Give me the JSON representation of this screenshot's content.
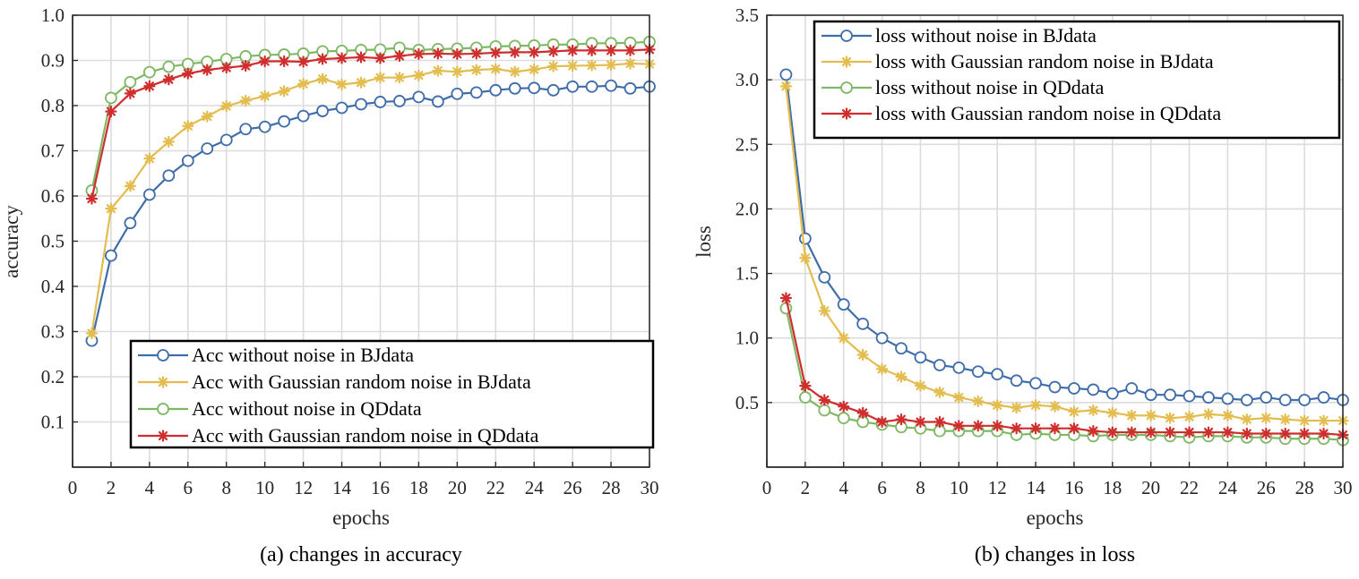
{
  "chart_data": [
    {
      "type": "line",
      "caption": "(a) changes in accuracy",
      "xlabel": "epochs",
      "ylabel": "accuracy",
      "xlim": [
        0,
        30
      ],
      "ylim": [
        0,
        1.0
      ],
      "xticks": [
        0,
        2,
        4,
        6,
        8,
        10,
        12,
        14,
        16,
        18,
        20,
        22,
        24,
        26,
        28,
        30
      ],
      "yticks": [
        "0.1",
        "0.2",
        "0.3",
        "0.4",
        "0.5",
        "0.6",
        "0.7",
        "0.8",
        "0.9",
        "1.0"
      ],
      "grid": true,
      "legend_position": "bottom-right",
      "x": [
        1,
        2,
        3,
        4,
        5,
        6,
        7,
        8,
        9,
        10,
        11,
        12,
        13,
        14,
        15,
        16,
        17,
        18,
        19,
        20,
        21,
        22,
        23,
        24,
        25,
        26,
        27,
        28,
        29,
        30
      ],
      "series": [
        {
          "name": "Acc without noise in BJdata",
          "color": "#3F6DAA",
          "marker": "circle",
          "values": [
            0.28,
            0.468,
            0.54,
            0.603,
            0.645,
            0.678,
            0.705,
            0.724,
            0.748,
            0.753,
            0.765,
            0.777,
            0.788,
            0.795,
            0.803,
            0.808,
            0.81,
            0.819,
            0.809,
            0.826,
            0.829,
            0.834,
            0.838,
            0.839,
            0.834,
            0.842,
            0.842,
            0.844,
            0.838,
            0.842
          ]
        },
        {
          "name": "Acc with Gaussian random noise in BJdata",
          "color": "#E3BD4F",
          "marker": "asterisk",
          "values": [
            0.296,
            0.572,
            0.622,
            0.683,
            0.72,
            0.755,
            0.776,
            0.799,
            0.811,
            0.821,
            0.832,
            0.848,
            0.859,
            0.847,
            0.851,
            0.862,
            0.862,
            0.867,
            0.877,
            0.875,
            0.879,
            0.881,
            0.875,
            0.88,
            0.887,
            0.888,
            0.889,
            0.89,
            0.893,
            0.892
          ]
        },
        {
          "name": "Acc without noise in QDdata",
          "color": "#7FB865",
          "marker": "circle",
          "values": [
            0.612,
            0.817,
            0.852,
            0.874,
            0.886,
            0.892,
            0.897,
            0.903,
            0.909,
            0.912,
            0.913,
            0.915,
            0.92,
            0.921,
            0.923,
            0.924,
            0.928,
            0.923,
            0.925,
            0.926,
            0.928,
            0.931,
            0.932,
            0.933,
            0.935,
            0.935,
            0.938,
            0.938,
            0.939,
            0.941
          ]
        },
        {
          "name": "Acc with Gaussian random noise in QDdata",
          "color": "#D02E2E",
          "marker": "asterisk",
          "values": [
            0.594,
            0.787,
            0.827,
            0.843,
            0.858,
            0.871,
            0.879,
            0.884,
            0.888,
            0.898,
            0.898,
            0.897,
            0.903,
            0.905,
            0.907,
            0.905,
            0.91,
            0.914,
            0.915,
            0.914,
            0.915,
            0.917,
            0.918,
            0.918,
            0.92,
            0.922,
            0.922,
            0.922,
            0.922,
            0.924
          ]
        }
      ]
    },
    {
      "type": "line",
      "caption": "(b) changes in loss",
      "xlabel": "epochs",
      "ylabel": "loss",
      "xlim": [
        0,
        30
      ],
      "ylim": [
        0,
        3.5
      ],
      "xticks": [
        0,
        2,
        4,
        6,
        8,
        10,
        12,
        14,
        16,
        18,
        20,
        22,
        24,
        26,
        28,
        30
      ],
      "yticks": [
        "0.5",
        "1.0",
        "1.5",
        "2.0",
        "2.5",
        "3.0",
        "3.5"
      ],
      "grid": true,
      "legend_position": "top-right",
      "x": [
        1,
        2,
        3,
        4,
        5,
        6,
        7,
        8,
        9,
        10,
        11,
        12,
        13,
        14,
        15,
        16,
        17,
        18,
        19,
        20,
        21,
        22,
        23,
        24,
        25,
        26,
        27,
        28,
        29,
        30
      ],
      "series": [
        {
          "name": "loss without noise in BJdata",
          "color": "#3F6DAA",
          "marker": "circle",
          "values": [
            3.04,
            1.77,
            1.47,
            1.26,
            1.11,
            1.0,
            0.92,
            0.85,
            0.79,
            0.77,
            0.74,
            0.72,
            0.67,
            0.65,
            0.62,
            0.61,
            0.6,
            0.57,
            0.61,
            0.56,
            0.56,
            0.55,
            0.54,
            0.53,
            0.52,
            0.54,
            0.52,
            0.52,
            0.54,
            0.52
          ]
        },
        {
          "name": "loss with Gaussian random noise in BJdata",
          "color": "#E3BD4F",
          "marker": "asterisk",
          "values": [
            2.95,
            1.62,
            1.21,
            1.0,
            0.87,
            0.76,
            0.7,
            0.63,
            0.58,
            0.54,
            0.51,
            0.48,
            0.46,
            0.48,
            0.47,
            0.43,
            0.44,
            0.42,
            0.4,
            0.4,
            0.38,
            0.39,
            0.41,
            0.4,
            0.37,
            0.38,
            0.37,
            0.36,
            0.36,
            0.36
          ]
        },
        {
          "name": "loss without noise in QDdata",
          "color": "#7FB865",
          "marker": "circle",
          "values": [
            1.23,
            0.54,
            0.44,
            0.38,
            0.35,
            0.33,
            0.31,
            0.3,
            0.28,
            0.28,
            0.28,
            0.28,
            0.25,
            0.26,
            0.25,
            0.25,
            0.24,
            0.25,
            0.25,
            0.25,
            0.24,
            0.23,
            0.24,
            0.24,
            0.23,
            0.23,
            0.22,
            0.22,
            0.22,
            0.21
          ]
        },
        {
          "name": "loss with Gaussian random noise in QDdata",
          "color": "#D02E2E",
          "marker": "asterisk",
          "values": [
            1.31,
            0.63,
            0.52,
            0.47,
            0.42,
            0.35,
            0.37,
            0.35,
            0.35,
            0.32,
            0.32,
            0.32,
            0.3,
            0.3,
            0.3,
            0.3,
            0.28,
            0.27,
            0.27,
            0.27,
            0.27,
            0.27,
            0.27,
            0.27,
            0.26,
            0.26,
            0.26,
            0.26,
            0.26,
            0.25
          ]
        }
      ]
    }
  ]
}
